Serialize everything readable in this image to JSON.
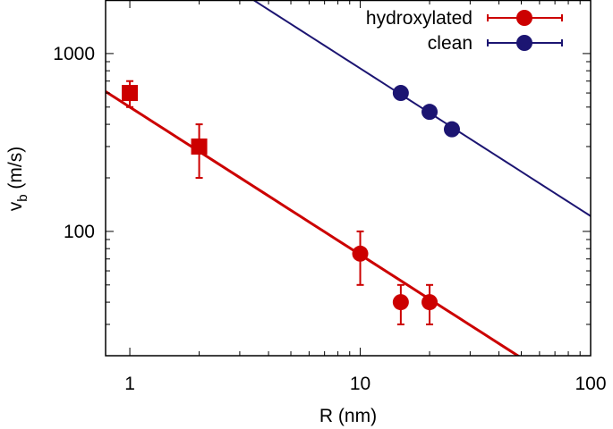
{
  "chart_data": {
    "type": "scatter",
    "xlabel": "R (nm)",
    "ylabel": "v",
    "ylabel_sub": "b",
    "ylabel_unit": " (m/s)",
    "xscale": "log",
    "yscale": "log",
    "xlim": [
      0.785,
      100
    ],
    "ylim": [
      20,
      2000
    ],
    "xticks": [
      {
        "v": 1,
        "label": "1"
      },
      {
        "v": 10,
        "label": "10"
      },
      {
        "v": 100,
        "label": "100"
      }
    ],
    "yticks": [
      {
        "v": 100,
        "label": "100"
      },
      {
        "v": 1000,
        "label": "1000"
      }
    ],
    "grid": false,
    "legend_position": "top-right",
    "series": [
      {
        "name": "hydroxylated",
        "color": "#cc0000",
        "points": [
          {
            "x": 1,
            "y": 600,
            "ylo": 500,
            "yhi": 700,
            "marker": "square"
          },
          {
            "x": 2,
            "y": 300,
            "ylo": 200,
            "yhi": 400,
            "marker": "square"
          },
          {
            "x": 10,
            "y": 75,
            "ylo": 50,
            "yhi": 100,
            "marker": "circle"
          },
          {
            "x": 15,
            "y": 40,
            "ylo": 30,
            "yhi": 50,
            "marker": "circle"
          },
          {
            "x": 20,
            "y": 40,
            "ylo": 30,
            "yhi": 50,
            "marker": "circle"
          }
        ],
        "fit": {
          "prefactor": 500,
          "exponent": -0.83
        }
      },
      {
        "name": "clean",
        "color": "#1c1572",
        "points": [
          {
            "x": 15,
            "y": 600,
            "marker": "circle"
          },
          {
            "x": 20,
            "y": 470,
            "marker": "circle"
          },
          {
            "x": 25,
            "y": 375,
            "marker": "circle"
          }
        ],
        "fit": {
          "prefactor": 5575,
          "exponent": -0.83
        }
      }
    ]
  }
}
